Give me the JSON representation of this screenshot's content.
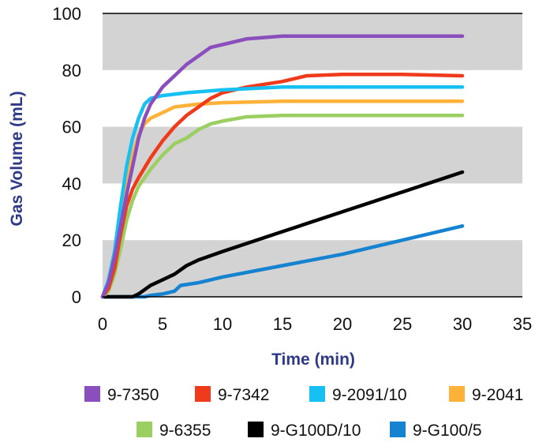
{
  "chart_data": {
    "type": "line",
    "title": "",
    "xlabel": "Time (min)",
    "ylabel": "Gas Volume (mL)",
    "xlim": [
      0,
      35
    ],
    "ylim": [
      0,
      100
    ],
    "xticks": [
      "0",
      "5",
      "10",
      "15",
      "20",
      "25",
      "30",
      "35"
    ],
    "yticks": [
      "0",
      "20",
      "40",
      "60",
      "80",
      "100"
    ],
    "grid": "alternating gray horizontal bands",
    "legend": "bottom",
    "series": [
      {
        "name": "9-7350",
        "color": "#8a4fbd",
        "points": [
          [
            0,
            0
          ],
          [
            0.5,
            5
          ],
          [
            1,
            14
          ],
          [
            1.5,
            25
          ],
          [
            2,
            36
          ],
          [
            2.5,
            46
          ],
          [
            3,
            56
          ],
          [
            3.5,
            63
          ],
          [
            4,
            68
          ],
          [
            5,
            74
          ],
          [
            6,
            78
          ],
          [
            7,
            82
          ],
          [
            8,
            85
          ],
          [
            9,
            88
          ],
          [
            10,
            89
          ],
          [
            12,
            91
          ],
          [
            15,
            92
          ],
          [
            20,
            92
          ],
          [
            25,
            92
          ],
          [
            30,
            92
          ]
        ]
      },
      {
        "name": "9-7342",
        "color": "#f03a1c",
        "points": [
          [
            0,
            0
          ],
          [
            0.5,
            3
          ],
          [
            1,
            10
          ],
          [
            1.5,
            22
          ],
          [
            2,
            32
          ],
          [
            2.5,
            38
          ],
          [
            3,
            42
          ],
          [
            4,
            49
          ],
          [
            5,
            55
          ],
          [
            6,
            60
          ],
          [
            7,
            64
          ],
          [
            8,
            67
          ],
          [
            9,
            70
          ],
          [
            10,
            72
          ],
          [
            12,
            74
          ],
          [
            15,
            76
          ],
          [
            17,
            78
          ],
          [
            20,
            78.5
          ],
          [
            25,
            78.5
          ],
          [
            30,
            78
          ]
        ]
      },
      {
        "name": "9-2091/10",
        "color": "#17c0f2",
        "points": [
          [
            0,
            0
          ],
          [
            0.5,
            6
          ],
          [
            1,
            16
          ],
          [
            1.5,
            32
          ],
          [
            2,
            46
          ],
          [
            2.5,
            56
          ],
          [
            3,
            63
          ],
          [
            3.5,
            68
          ],
          [
            4,
            70
          ],
          [
            5,
            71
          ],
          [
            7,
            72
          ],
          [
            10,
            73
          ],
          [
            15,
            74
          ],
          [
            20,
            74
          ],
          [
            25,
            74
          ],
          [
            30,
            74
          ]
        ]
      },
      {
        "name": "9-2041",
        "color": "#ffb239",
        "points": [
          [
            0,
            0
          ],
          [
            0.5,
            5
          ],
          [
            1,
            14
          ],
          [
            1.5,
            28
          ],
          [
            2,
            40
          ],
          [
            2.5,
            50
          ],
          [
            3,
            57
          ],
          [
            3.5,
            61
          ],
          [
            4,
            63
          ],
          [
            5,
            65
          ],
          [
            6,
            67
          ],
          [
            8,
            68
          ],
          [
            10,
            68.5
          ],
          [
            15,
            69
          ],
          [
            20,
            69
          ],
          [
            25,
            69
          ],
          [
            30,
            69
          ]
        ]
      },
      {
        "name": "9-6355",
        "color": "#9ccf61",
        "points": [
          [
            0,
            0
          ],
          [
            0.5,
            2
          ],
          [
            1,
            8
          ],
          [
            1.5,
            17
          ],
          [
            2,
            27
          ],
          [
            2.5,
            34
          ],
          [
            3,
            39
          ],
          [
            4,
            45
          ],
          [
            5,
            50
          ],
          [
            6,
            54
          ],
          [
            7,
            56
          ],
          [
            8,
            59
          ],
          [
            9,
            61
          ],
          [
            10,
            62
          ],
          [
            12,
            63.5
          ],
          [
            15,
            64
          ],
          [
            20,
            64
          ],
          [
            25,
            64
          ],
          [
            30,
            64
          ]
        ]
      },
      {
        "name": "9-G100D/10",
        "color": "#000000",
        "points": [
          [
            0,
            0
          ],
          [
            2.5,
            0
          ],
          [
            3,
            1
          ],
          [
            4,
            4
          ],
          [
            5,
            6
          ],
          [
            6,
            8
          ],
          [
            7,
            11
          ],
          [
            8,
            13
          ],
          [
            10,
            16
          ],
          [
            15,
            23
          ],
          [
            20,
            30
          ],
          [
            25,
            37
          ],
          [
            30,
            44
          ]
        ]
      },
      {
        "name": "9-G100/5",
        "color": "#1583d0",
        "points": [
          [
            0,
            0
          ],
          [
            3.5,
            0
          ],
          [
            4,
            0.5
          ],
          [
            5,
            1
          ],
          [
            6,
            2
          ],
          [
            6.5,
            4
          ],
          [
            8,
            5
          ],
          [
            10,
            7
          ],
          [
            15,
            11
          ],
          [
            20,
            15
          ],
          [
            25,
            20
          ],
          [
            30,
            25
          ]
        ]
      }
    ]
  }
}
